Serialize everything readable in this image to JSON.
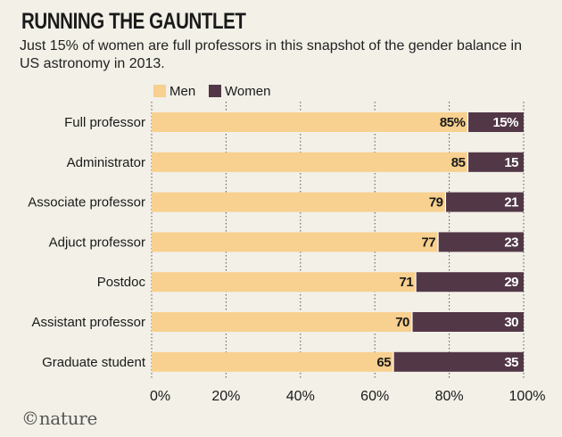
{
  "header": {
    "title": "RUNNING THE GAUNTLET",
    "subtitle": "Just 15% of women are full professors in this snapshot of the gender balance in US astronomy in 2013."
  },
  "footer": {
    "brand": "©nature"
  },
  "colors": {
    "men": "#f8d08f",
    "women": "#523847",
    "grid": "#555555",
    "background": "#f2f0e7"
  },
  "chart_data": {
    "type": "bar",
    "orientation": "horizontal",
    "stacked": true,
    "categories": [
      "Full professor",
      "Administrator",
      "Associate professor",
      "Adjuct professor",
      "Postdoc",
      "Assistant professor",
      "Graduate student"
    ],
    "series": [
      {
        "name": "Men",
        "values": [
          85,
          85,
          79,
          77,
          71,
          70,
          65
        ],
        "labels": [
          "85%",
          "85",
          "79",
          "77",
          "71",
          "70",
          "65"
        ]
      },
      {
        "name": "Women",
        "values": [
          15,
          15,
          21,
          23,
          29,
          30,
          35
        ],
        "labels": [
          "15%",
          "15",
          "21",
          "23",
          "29",
          "30",
          "35"
        ]
      }
    ],
    "xlim": [
      0,
      100
    ],
    "xticks": [
      "0%",
      "20%",
      "40%",
      "60%",
      "80%",
      "100%"
    ],
    "grid": true,
    "legend_position": "top"
  }
}
